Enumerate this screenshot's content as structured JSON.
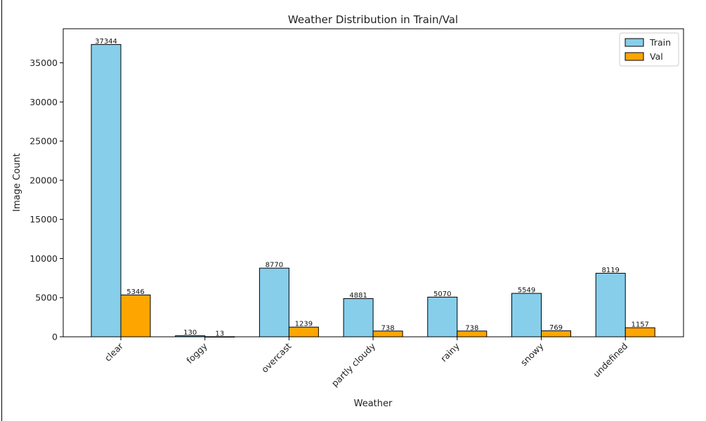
{
  "chart_data": {
    "type": "bar",
    "title": "Weather Distribution in Train/Val",
    "xlabel": "Weather",
    "ylabel": "Image Count",
    "categories": [
      "clear",
      "foggy",
      "overcast",
      "partly cloudy",
      "rainy",
      "snowy",
      "undefined"
    ],
    "series": [
      {
        "name": "Train",
        "values": [
          37344,
          130,
          8770,
          4881,
          5070,
          5549,
          8119
        ],
        "color": "#87ceeb"
      },
      {
        "name": "Val",
        "values": [
          5346,
          13,
          1239,
          738,
          738,
          769,
          1157
        ],
        "color": "#ffa500"
      }
    ],
    "ylim": [
      0,
      39350
    ],
    "yticks": [
      0,
      5000,
      10000,
      15000,
      20000,
      25000,
      30000,
      35000
    ],
    "legend_position": "top-right",
    "grid": false
  }
}
